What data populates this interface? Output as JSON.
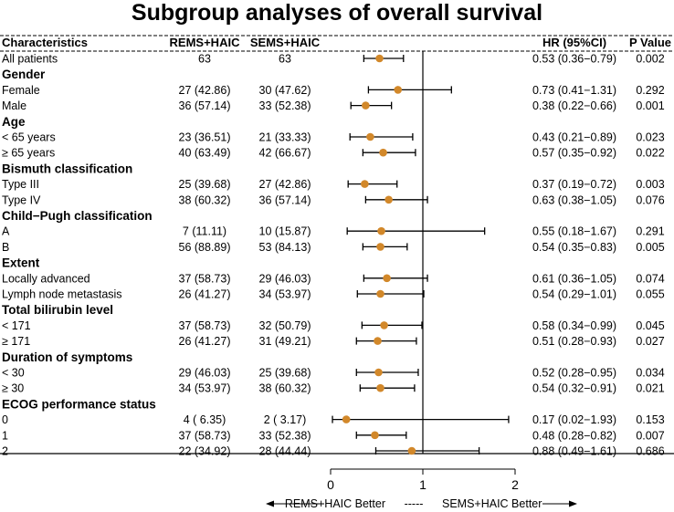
{
  "chart_data": {
    "type": "forest",
    "title": "Subgroup analyses of overall survival",
    "headers": {
      "characteristics": "Characteristics",
      "group1": "REMS+HAIC",
      "group2": "SEMS+HAIC",
      "hr": "HR (95%CI)",
      "p": "P Value"
    },
    "rows": [
      {
        "kind": "item",
        "label": "All patients",
        "g1": "63",
        "g2": "63",
        "hr": 0.53,
        "lo": 0.36,
        "hi": 0.79,
        "hr_text": "0.53 (0.36−0.79)",
        "p": "0.002"
      },
      {
        "kind": "group",
        "label": "Gender"
      },
      {
        "kind": "item",
        "label": "Female",
        "g1": "27 (42.86)",
        "g2": "30 (47.62)",
        "hr": 0.73,
        "lo": 0.41,
        "hi": 1.31,
        "hr_text": "0.73 (0.41−1.31)",
        "p": "0.292"
      },
      {
        "kind": "item",
        "label": "Male",
        "g1": "36 (57.14)",
        "g2": "33 (52.38)",
        "hr": 0.38,
        "lo": 0.22,
        "hi": 0.66,
        "hr_text": "0.38 (0.22−0.66)",
        "p": "0.001"
      },
      {
        "kind": "group",
        "label": "Age"
      },
      {
        "kind": "item",
        "label": "< 65 years",
        "g1": "23 (36.51)",
        "g2": "21 (33.33)",
        "hr": 0.43,
        "lo": 0.21,
        "hi": 0.89,
        "hr_text": "0.43 (0.21−0.89)",
        "p": "0.023"
      },
      {
        "kind": "item",
        "label": "≥ 65 years",
        "g1": "40 (63.49)",
        "g2": "42 (66.67)",
        "hr": 0.57,
        "lo": 0.35,
        "hi": 0.92,
        "hr_text": "0.57 (0.35−0.92)",
        "p": "0.022"
      },
      {
        "kind": "group",
        "label": "Bismuth classification"
      },
      {
        "kind": "item",
        "label": "Type III",
        "g1": "25 (39.68)",
        "g2": "27 (42.86)",
        "hr": 0.37,
        "lo": 0.19,
        "hi": 0.72,
        "hr_text": "0.37 (0.19−0.72)",
        "p": "0.003"
      },
      {
        "kind": "item",
        "label": "Type IV",
        "g1": "38 (60.32)",
        "g2": "36 (57.14)",
        "hr": 0.63,
        "lo": 0.38,
        "hi": 1.05,
        "hr_text": "0.63 (0.38−1.05)",
        "p": "0.076"
      },
      {
        "kind": "group",
        "label": "Child−Pugh classification"
      },
      {
        "kind": "item",
        "label": "A",
        "g1": "7 (11.11)",
        "g2": "10 (15.87)",
        "hr": 0.55,
        "lo": 0.18,
        "hi": 1.67,
        "hr_text": "0.55 (0.18−1.67)",
        "p": "0.291"
      },
      {
        "kind": "item",
        "label": "B",
        "g1": "56 (88.89)",
        "g2": "53 (84.13)",
        "hr": 0.54,
        "lo": 0.35,
        "hi": 0.83,
        "hr_text": "0.54 (0.35−0.83)",
        "p": "0.005"
      },
      {
        "kind": "group",
        "label": "Extent"
      },
      {
        "kind": "item",
        "label": "Locally advanced",
        "g1": "37 (58.73)",
        "g2": "29 (46.03)",
        "hr": 0.61,
        "lo": 0.36,
        "hi": 1.05,
        "hr_text": "0.61 (0.36−1.05)",
        "p": "0.074"
      },
      {
        "kind": "item",
        "label": "Lymph node metastasis",
        "g1": "26 (41.27)",
        "g2": "34 (53.97)",
        "hr": 0.54,
        "lo": 0.29,
        "hi": 1.01,
        "hr_text": "0.54 (0.29−1.01)",
        "p": "0.055"
      },
      {
        "kind": "group",
        "label": "Total bilirubin level"
      },
      {
        "kind": "item",
        "label": "< 171",
        "g1": "37 (58.73)",
        "g2": "32 (50.79)",
        "hr": 0.58,
        "lo": 0.34,
        "hi": 0.99,
        "hr_text": "0.58 (0.34−0.99)",
        "p": "0.045"
      },
      {
        "kind": "item",
        "label": "≥ 171",
        "g1": "26 (41.27)",
        "g2": "31 (49.21)",
        "hr": 0.51,
        "lo": 0.28,
        "hi": 0.93,
        "hr_text": "0.51 (0.28−0.93)",
        "p": "0.027"
      },
      {
        "kind": "group",
        "label": "Duration of symptoms"
      },
      {
        "kind": "item",
        "label": "< 30",
        "g1": "29 (46.03)",
        "g2": "25 (39.68)",
        "hr": 0.52,
        "lo": 0.28,
        "hi": 0.95,
        "hr_text": "0.52 (0.28−0.95)",
        "p": "0.034"
      },
      {
        "kind": "item",
        "label": "≥ 30",
        "g1": "34 (53.97)",
        "g2": "38 (60.32)",
        "hr": 0.54,
        "lo": 0.32,
        "hi": 0.91,
        "hr_text": "0.54 (0.32−0.91)",
        "p": "0.021"
      },
      {
        "kind": "group",
        "label": "ECOG performance status"
      },
      {
        "kind": "item",
        "label": "0",
        "g1": "4 ( 6.35)",
        "g2": "2 ( 3.17)",
        "hr": 0.17,
        "lo": 0.02,
        "hi": 1.93,
        "hr_text": "0.17 (0.02−1.93)",
        "p": "0.153"
      },
      {
        "kind": "item",
        "label": "1",
        "g1": "37 (58.73)",
        "g2": "33 (52.38)",
        "hr": 0.48,
        "lo": 0.28,
        "hi": 0.82,
        "hr_text": "0.48 (0.28−0.82)",
        "p": "0.007"
      },
      {
        "kind": "item",
        "label": "2",
        "g1": "22 (34.92)",
        "g2": "28 (44.44)",
        "hr": 0.88,
        "lo": 0.49,
        "hi": 1.61,
        "hr_text": "0.88 (0.49−1.61)",
        "p": "0.686"
      }
    ],
    "xlim": [
      0,
      2
    ],
    "xticks": [
      0,
      1,
      2
    ],
    "xtick_labels": [
      "0",
      "1",
      "2"
    ],
    "reference_line": 1,
    "footer": {
      "left": "REMS+HAIC Better",
      "dashes": "-----",
      "right": "SEMS+HAIC Better"
    },
    "colors": {
      "point": "#D2882A",
      "line": "#000000",
      "text": "#111111"
    }
  }
}
